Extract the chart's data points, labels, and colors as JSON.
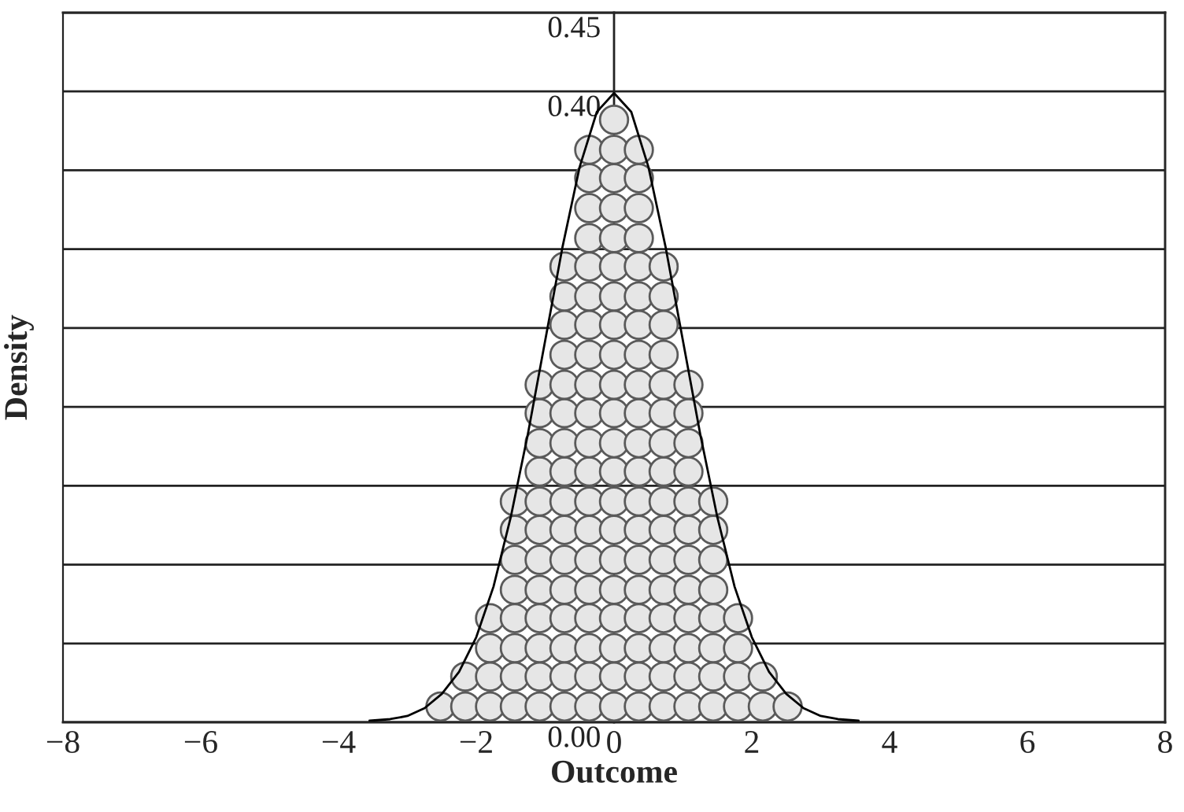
{
  "chart_data": {
    "type": "scatter",
    "xlabel": "Outcome",
    "ylabel": "Density",
    "xlim": [
      -8,
      8
    ],
    "ylim": [
      0,
      0.45
    ],
    "xticks": [
      {
        "value": -8,
        "label": "−8"
      },
      {
        "value": -6,
        "label": "−6"
      },
      {
        "value": -4,
        "label": "−4"
      },
      {
        "value": -2,
        "label": "−2"
      },
      0,
      2,
      4,
      6,
      8
    ],
    "yticks": [
      {
        "value": 0,
        "label": "0.00"
      },
      {
        "value": 0.05,
        "label": null
      },
      {
        "value": 0.1,
        "label": null
      },
      {
        "value": 0.15,
        "label": null
      },
      {
        "value": 0.2,
        "label": null
      },
      {
        "value": 0.25,
        "label": null
      },
      {
        "value": 0.3,
        "label": null
      },
      {
        "value": 0.35,
        "label": null
      },
      {
        "value": 0.4,
        "label": "0.40"
      },
      {
        "value": 0.45,
        "label": "0.45"
      }
    ],
    "grid": "y",
    "series": [
      {
        "color": "#e6e6e6",
        "marker": "circle",
        "x": [
          -2.52,
          -2.16,
          -2.16,
          -1.8,
          -1.8,
          -1.8,
          -1.8,
          -1.44,
          -1.44,
          -1.44,
          -1.44,
          -1.44,
          -1.44,
          -1.44,
          -1.44,
          -1.08,
          -1.08,
          -1.08,
          -1.08,
          -1.08,
          -1.08,
          -1.08,
          -1.08,
          -1.08,
          -1.08,
          -1.08,
          -1.08,
          -0.72,
          -0.72,
          -0.72,
          -0.72,
          -0.72,
          -0.72,
          -0.72,
          -0.72,
          -0.72,
          -0.72,
          -0.72,
          -0.72,
          -0.72,
          -0.72,
          -0.72,
          -0.72,
          -0.36,
          -0.36,
          -0.36,
          -0.36,
          -0.36,
          -0.36,
          -0.36,
          -0.36,
          -0.36,
          -0.36,
          -0.36,
          -0.36,
          -0.36,
          -0.36,
          -0.36,
          -0.36,
          -0.36,
          -0.36,
          -0.36,
          -0.36,
          0,
          0,
          0,
          0,
          0,
          0,
          0,
          0,
          0,
          0,
          0,
          0,
          0,
          0,
          0,
          0,
          0,
          0,
          0,
          0,
          0,
          0.36,
          0.36,
          0.36,
          0.36,
          0.36,
          0.36,
          0.36,
          0.36,
          0.36,
          0.36,
          0.36,
          0.36,
          0.36,
          0.36,
          0.36,
          0.36,
          0.36,
          0.36,
          0.36,
          0.36,
          0.72,
          0.72,
          0.72,
          0.72,
          0.72,
          0.72,
          0.72,
          0.72,
          0.72,
          0.72,
          0.72,
          0.72,
          0.72,
          0.72,
          0.72,
          0.72,
          1.08,
          1.08,
          1.08,
          1.08,
          1.08,
          1.08,
          1.08,
          1.08,
          1.08,
          1.08,
          1.08,
          1.08,
          1.44,
          1.44,
          1.44,
          1.44,
          1.44,
          1.44,
          1.44,
          1.44,
          1.8,
          1.8,
          1.8,
          1.8,
          2.16,
          2.16,
          2.52
        ],
        "values": [
          0.01,
          0.01,
          0.029,
          0.01,
          0.029,
          0.047,
          0.066,
          0.01,
          0.029,
          0.047,
          0.066,
          0.084,
          0.103,
          0.122,
          0.14,
          0.01,
          0.029,
          0.047,
          0.066,
          0.084,
          0.103,
          0.122,
          0.14,
          0.159,
          0.177,
          0.196,
          0.214,
          0.01,
          0.029,
          0.047,
          0.066,
          0.084,
          0.103,
          0.122,
          0.14,
          0.159,
          0.177,
          0.196,
          0.214,
          0.233,
          0.252,
          0.27,
          0.289,
          0.01,
          0.029,
          0.047,
          0.066,
          0.084,
          0.103,
          0.122,
          0.14,
          0.159,
          0.177,
          0.196,
          0.214,
          0.233,
          0.252,
          0.27,
          0.289,
          0.307,
          0.326,
          0.345,
          0.363,
          0.01,
          0.029,
          0.047,
          0.066,
          0.084,
          0.103,
          0.122,
          0.14,
          0.159,
          0.177,
          0.196,
          0.214,
          0.233,
          0.252,
          0.27,
          0.289,
          0.307,
          0.326,
          0.345,
          0.363,
          0.382,
          0.01,
          0.029,
          0.047,
          0.066,
          0.084,
          0.103,
          0.122,
          0.14,
          0.159,
          0.177,
          0.196,
          0.214,
          0.233,
          0.252,
          0.27,
          0.289,
          0.307,
          0.326,
          0.345,
          0.363,
          0.01,
          0.029,
          0.047,
          0.066,
          0.084,
          0.103,
          0.122,
          0.14,
          0.159,
          0.177,
          0.196,
          0.214,
          0.233,
          0.252,
          0.27,
          0.289,
          0.01,
          0.029,
          0.047,
          0.066,
          0.084,
          0.103,
          0.122,
          0.14,
          0.159,
          0.177,
          0.196,
          0.214,
          0.01,
          0.029,
          0.047,
          0.066,
          0.084,
          0.103,
          0.122,
          0.14,
          0.01,
          0.029,
          0.047,
          0.066,
          0.01,
          0.029,
          0.01
        ]
      },
      {
        "type": "line",
        "color": "#000000",
        "marker": "none",
        "line_style": "solid",
        "x": [
          -3.55,
          -3.25,
          -3.0,
          -2.75,
          -2.5,
          -2.25,
          -2.0,
          -1.75,
          -1.5,
          -1.25,
          -1.0,
          -0.75,
          -0.5,
          -0.25,
          0,
          0.25,
          0.5,
          0.75,
          1.0,
          1.25,
          1.5,
          1.75,
          2.0,
          2.25,
          2.5,
          2.75,
          3.0,
          3.25,
          3.55
        ],
        "values": [
          0.001,
          0.002,
          0.004,
          0.009,
          0.018,
          0.032,
          0.054,
          0.086,
          0.13,
          0.183,
          0.242,
          0.301,
          0.352,
          0.387,
          0.399,
          0.387,
          0.352,
          0.301,
          0.242,
          0.183,
          0.13,
          0.086,
          0.054,
          0.032,
          0.018,
          0.009,
          0.004,
          0.002,
          0.001
        ]
      }
    ]
  }
}
